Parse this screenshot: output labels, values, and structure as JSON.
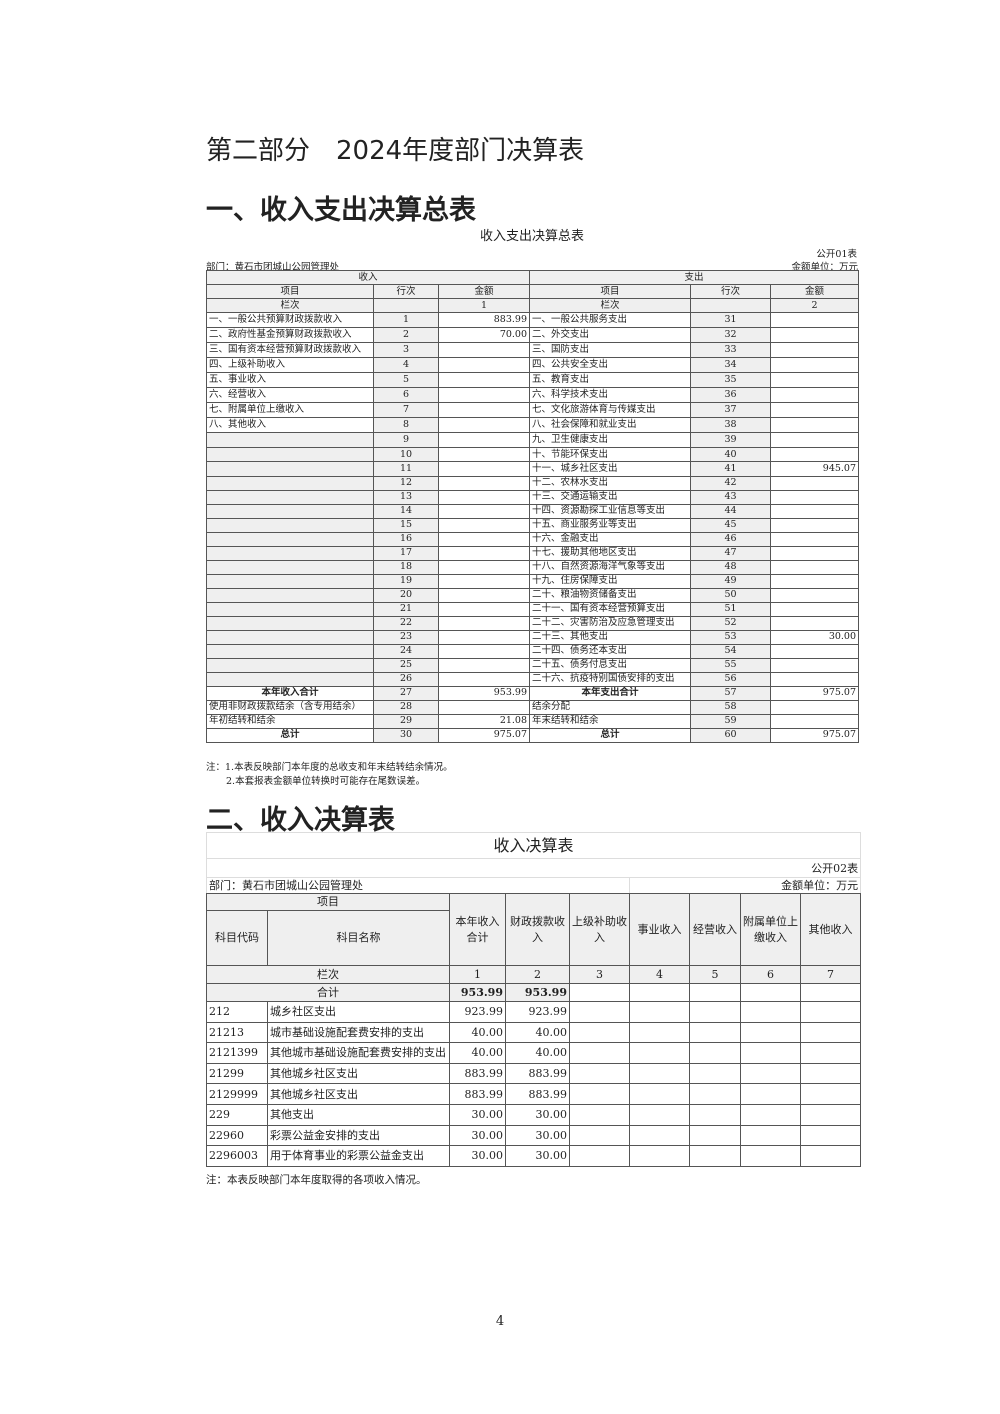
{
  "part_title": "第二部分　2024年度部门决算表",
  "section1_title": "一、收入支出决算总表",
  "table1": {
    "title": "收入支出决算总表",
    "code": "公开01表",
    "department": "部门：黄石市团城山公园管理处",
    "unit": "金额单位：万元",
    "income_header": "收入",
    "expense_header": "支出",
    "col_item": "项目",
    "col_row": "行次",
    "col_amount": "金额",
    "col_index": "栏次",
    "income_col_no": "1",
    "expense_col_no": "2",
    "rows": [
      {
        "in_item": "一、一般公共预算财政拨款收入",
        "in_no": "1",
        "in_amt": "883.99",
        "ex_item": "一、一般公共服务支出",
        "ex_no": "31",
        "ex_amt": ""
      },
      {
        "in_item": "二、政府性基金预算财政拨款收入",
        "in_no": "2",
        "in_amt": "70.00",
        "ex_item": "二、外交支出",
        "ex_no": "32",
        "ex_amt": ""
      },
      {
        "in_item": "三、国有资本经营预算财政拨款收入",
        "in_no": "3",
        "in_amt": "",
        "ex_item": "三、国防支出",
        "ex_no": "33",
        "ex_amt": ""
      },
      {
        "in_item": "四、上级补助收入",
        "in_no": "4",
        "in_amt": "",
        "ex_item": "四、公共安全支出",
        "ex_no": "34",
        "ex_amt": ""
      },
      {
        "in_item": "五、事业收入",
        "in_no": "5",
        "in_amt": "",
        "ex_item": "五、教育支出",
        "ex_no": "35",
        "ex_amt": ""
      },
      {
        "in_item": "六、经营收入",
        "in_no": "6",
        "in_amt": "",
        "ex_item": "六、科学技术支出",
        "ex_no": "36",
        "ex_amt": ""
      },
      {
        "in_item": "七、附属单位上缴收入",
        "in_no": "7",
        "in_amt": "",
        "ex_item": "七、文化旅游体育与传媒支出",
        "ex_no": "37",
        "ex_amt": ""
      },
      {
        "in_item": "八、其他收入",
        "in_no": "8",
        "in_amt": "",
        "ex_item": "八、社会保障和就业支出",
        "ex_no": "38",
        "ex_amt": ""
      },
      {
        "in_item": "",
        "in_no": "9",
        "in_amt": "",
        "ex_item": "九、卫生健康支出",
        "ex_no": "39",
        "ex_amt": ""
      },
      {
        "in_item": "",
        "in_no": "10",
        "in_amt": "",
        "ex_item": "十、节能环保支出",
        "ex_no": "40",
        "ex_amt": ""
      },
      {
        "in_item": "",
        "in_no": "11",
        "in_amt": "",
        "ex_item": "十一、城乡社区支出",
        "ex_no": "41",
        "ex_amt": "945.07"
      },
      {
        "in_item": "",
        "in_no": "12",
        "in_amt": "",
        "ex_item": "十二、农林水支出",
        "ex_no": "42",
        "ex_amt": ""
      },
      {
        "in_item": "",
        "in_no": "13",
        "in_amt": "",
        "ex_item": "十三、交通运输支出",
        "ex_no": "43",
        "ex_amt": ""
      },
      {
        "in_item": "",
        "in_no": "14",
        "in_amt": "",
        "ex_item": "十四、资源勘探工业信息等支出",
        "ex_no": "44",
        "ex_amt": ""
      },
      {
        "in_item": "",
        "in_no": "15",
        "in_amt": "",
        "ex_item": "十五、商业服务业等支出",
        "ex_no": "45",
        "ex_amt": ""
      },
      {
        "in_item": "",
        "in_no": "16",
        "in_amt": "",
        "ex_item": "十六、金融支出",
        "ex_no": "46",
        "ex_amt": ""
      },
      {
        "in_item": "",
        "in_no": "17",
        "in_amt": "",
        "ex_item": "十七、援助其他地区支出",
        "ex_no": "47",
        "ex_amt": ""
      },
      {
        "in_item": "",
        "in_no": "18",
        "in_amt": "",
        "ex_item": "十八、自然资源海洋气象等支出",
        "ex_no": "48",
        "ex_amt": ""
      },
      {
        "in_item": "",
        "in_no": "19",
        "in_amt": "",
        "ex_item": "十九、住房保障支出",
        "ex_no": "49",
        "ex_amt": ""
      },
      {
        "in_item": "",
        "in_no": "20",
        "in_amt": "",
        "ex_item": "二十、粮油物资储备支出",
        "ex_no": "50",
        "ex_amt": ""
      },
      {
        "in_item": "",
        "in_no": "21",
        "in_amt": "",
        "ex_item": "二十一、国有资本经营预算支出",
        "ex_no": "51",
        "ex_amt": ""
      },
      {
        "in_item": "",
        "in_no": "22",
        "in_amt": "",
        "ex_item": "二十二、灾害防治及应急管理支出",
        "ex_no": "52",
        "ex_amt": ""
      },
      {
        "in_item": "",
        "in_no": "23",
        "in_amt": "",
        "ex_item": "二十三、其他支出",
        "ex_no": "53",
        "ex_amt": "30.00"
      },
      {
        "in_item": "",
        "in_no": "24",
        "in_amt": "",
        "ex_item": "二十四、债务还本支出",
        "ex_no": "54",
        "ex_amt": ""
      },
      {
        "in_item": "",
        "in_no": "25",
        "in_amt": "",
        "ex_item": "二十五、债务付息支出",
        "ex_no": "55",
        "ex_amt": ""
      },
      {
        "in_item": "",
        "in_no": "26",
        "in_amt": "",
        "ex_item": "二十六、抗疫特别国债安排的支出",
        "ex_no": "56",
        "ex_amt": ""
      },
      {
        "in_item": "本年收入合计",
        "in_no": "27",
        "in_amt": "953.99",
        "ex_item": "本年支出合计",
        "ex_no": "57",
        "ex_amt": "975.07",
        "bold": true
      },
      {
        "in_item": "使用非财政拨款结余（含专用结余）",
        "in_no": "28",
        "in_amt": "",
        "ex_item": "结余分配",
        "ex_no": "58",
        "ex_amt": ""
      },
      {
        "in_item": "年初结转和结余",
        "in_no": "29",
        "in_amt": "21.08",
        "ex_item": "年末结转和结余",
        "ex_no": "59",
        "ex_amt": ""
      },
      {
        "in_item": "总计",
        "in_no": "30",
        "in_amt": "975.07",
        "ex_item": "总计",
        "ex_no": "60",
        "ex_amt": "975.07",
        "bold": true
      }
    ],
    "notes": [
      "注：1.本表反映部门本年度的总收支和年末结转结余情况。",
      "2.本套报表金额单位转换时可能存在尾数误差。"
    ]
  },
  "section2_title": "二、收入决算表",
  "table2": {
    "title": "收入决算表",
    "code": "公开02表",
    "department": "部门：黄石市团城山公园管理处",
    "unit": "金额单位：万元",
    "col_item": "项目",
    "col_code": "科目代码",
    "col_name": "科目名称",
    "columns": [
      "本年收入合计",
      "财政拨款收入",
      "上级补助收入",
      "事业收入",
      "经营收入",
      "附属单位上缴收入",
      "其他收入"
    ],
    "col_index": "栏次",
    "col_numbers": [
      "1",
      "2",
      "3",
      "4",
      "5",
      "6",
      "7"
    ],
    "total_label": "合计",
    "total_values": [
      "953.99",
      "953.99",
      "",
      "",
      "",
      "",
      ""
    ],
    "rows": [
      {
        "code": "212",
        "name": "城乡社区支出",
        "values": [
          "923.99",
          "923.99",
          "",
          "",
          "",
          "",
          ""
        ]
      },
      {
        "code": "21213",
        "name": "城市基础设施配套费安排的支出",
        "values": [
          "40.00",
          "40.00",
          "",
          "",
          "",
          "",
          ""
        ]
      },
      {
        "code": "2121399",
        "name": "其他城市基础设施配套费安排的支出",
        "values": [
          "40.00",
          "40.00",
          "",
          "",
          "",
          "",
          ""
        ]
      },
      {
        "code": "21299",
        "name": "其他城乡社区支出",
        "values": [
          "883.99",
          "883.99",
          "",
          "",
          "",
          "",
          ""
        ]
      },
      {
        "code": "2129999",
        "name": "其他城乡社区支出",
        "values": [
          "883.99",
          "883.99",
          "",
          "",
          "",
          "",
          ""
        ]
      },
      {
        "code": "229",
        "name": "其他支出",
        "values": [
          "30.00",
          "30.00",
          "",
          "",
          "",
          "",
          ""
        ]
      },
      {
        "code": "22960",
        "name": "彩票公益金安排的支出",
        "values": [
          "30.00",
          "30.00",
          "",
          "",
          "",
          "",
          ""
        ]
      },
      {
        "code": "2296003",
        "name": "用于体育事业的彩票公益金支出",
        "values": [
          "30.00",
          "30.00",
          "",
          "",
          "",
          "",
          ""
        ]
      }
    ],
    "note": "注：本表反映部门本年度取得的各项收入情况。"
  },
  "page_number": "4"
}
